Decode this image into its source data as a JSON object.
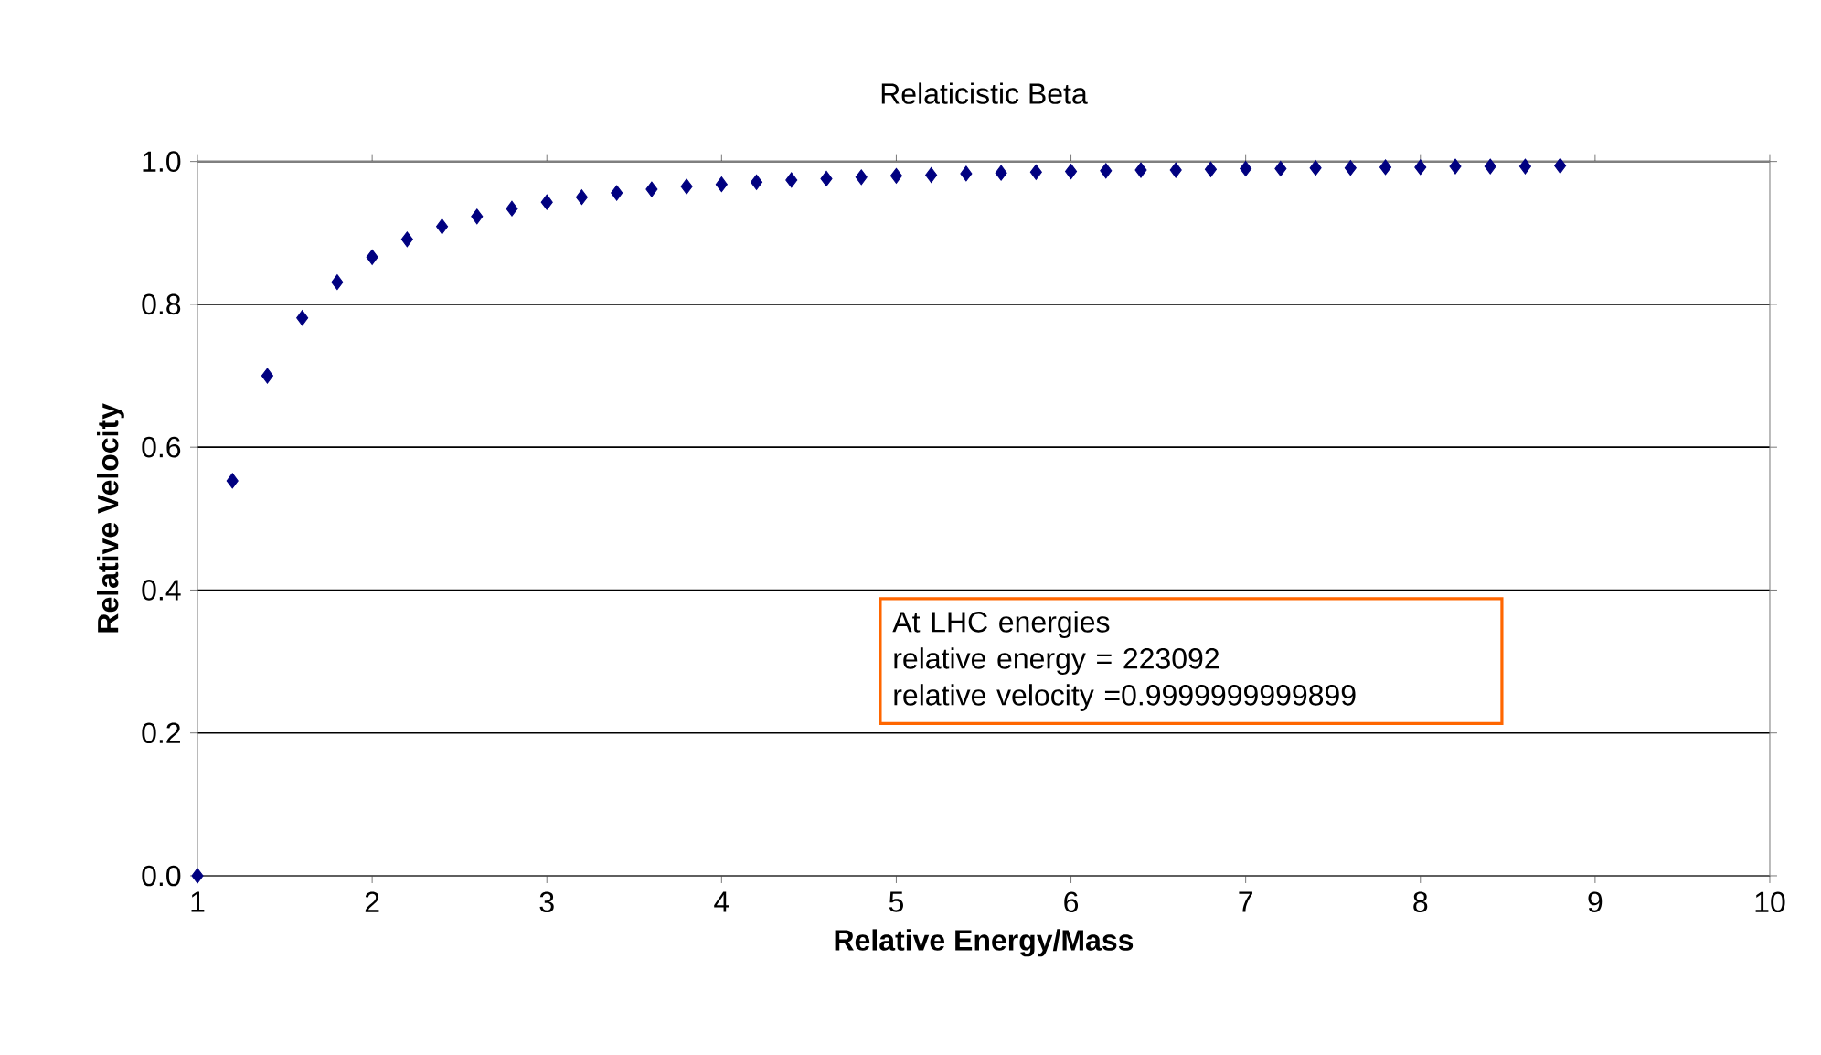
{
  "chart_data": {
    "type": "scatter",
    "title": "Relaticistic Beta",
    "xlabel": "Relative Energy/Mass",
    "ylabel": "Relative Velocity",
    "x": [
      1,
      1.2,
      1.4,
      1.6,
      1.8,
      2,
      2.2,
      2.4,
      2.6,
      2.8,
      3,
      3.2,
      3.4,
      3.6,
      3.8,
      4,
      4.2,
      4.4,
      4.6,
      4.8,
      5,
      5.2,
      5.4,
      5.6,
      5.8,
      6,
      6.2,
      6.4,
      6.6,
      6.8,
      7,
      7.2,
      7.4,
      7.6,
      7.8,
      8,
      8.2,
      8.4,
      8.6,
      8.8
    ],
    "series": [
      {
        "color": "#000080",
        "values": [
          0,
          0.553,
          0.7,
          0.781,
          0.831,
          0.866,
          0.891,
          0.909,
          0.923,
          0.934,
          0.943,
          0.95,
          0.956,
          0.961,
          0.965,
          0.968,
          0.971,
          0.974,
          0.976,
          0.978,
          0.98,
          0.981,
          0.983,
          0.984,
          0.985,
          0.986,
          0.987,
          0.988,
          0.988,
          0.989,
          0.99,
          0.99,
          0.991,
          0.991,
          0.992,
          0.992,
          0.993,
          0.993,
          0.993,
          0.994
        ]
      }
    ],
    "xlim": [
      1,
      10
    ],
    "xticks": [
      1,
      2,
      3,
      4,
      5,
      6,
      7,
      8,
      9,
      10
    ],
    "ylim": [
      0,
      1
    ],
    "yticks": [
      {
        "value": 0,
        "label": "0.0"
      },
      {
        "value": 0.2,
        "label": "0.2"
      },
      {
        "value": 0.4,
        "label": "0.4"
      },
      {
        "value": 0.6,
        "label": "0.6"
      },
      {
        "value": 0.8,
        "label": "0.8"
      },
      {
        "value": 1,
        "label": "1.0"
      }
    ],
    "grid": "y",
    "marker": "diamond",
    "annotations": [
      "At LHC energies",
      " relative energy = 223092",
      "relative velocity =0.9999999999899"
    ]
  }
}
